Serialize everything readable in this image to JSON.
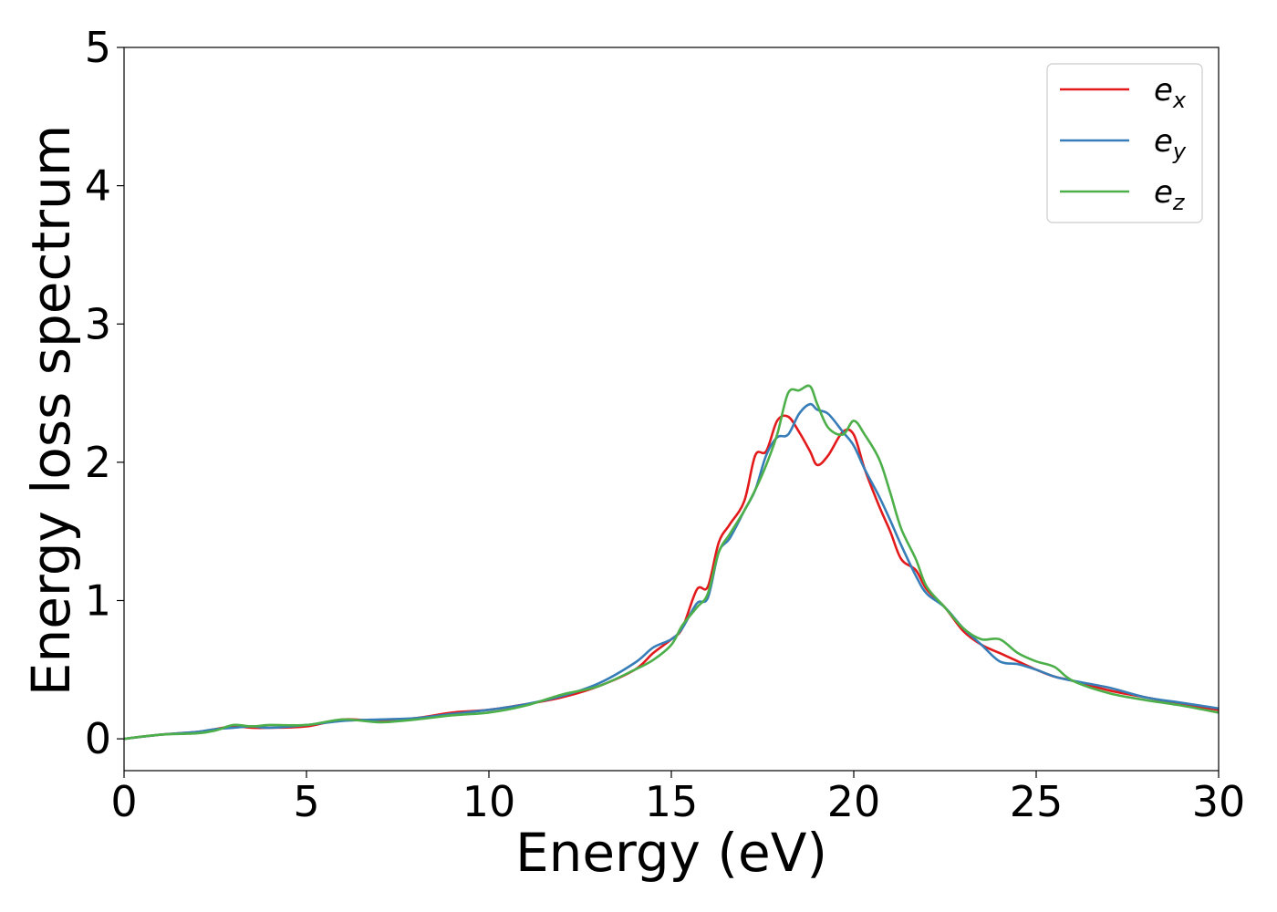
{
  "chart_data": {
    "type": "line",
    "xlabel": "Energy (eV)",
    "ylabel": "Energy loss spectrum",
    "xlim": [
      0,
      30
    ],
    "ylim": [
      -0.23,
      5
    ],
    "xticks": [
      0,
      5,
      10,
      15,
      20,
      25,
      30
    ],
    "yticks": [
      0,
      1,
      2,
      3,
      4,
      5
    ],
    "grid": false,
    "legend_position": "top-right",
    "x": [
      0,
      1,
      2,
      2.5,
      3,
      3.5,
      4,
      5,
      6,
      7,
      8,
      9,
      10,
      11,
      12,
      13,
      14,
      14.5,
      15,
      15.3,
      15.7,
      16,
      16.3,
      16.6,
      17,
      17.3,
      17.6,
      17.9,
      18.2,
      18.5,
      18.8,
      19,
      19.3,
      19.7,
      20,
      20.3,
      20.7,
      21,
      21.3,
      21.7,
      22,
      22.5,
      23,
      23.5,
      24,
      24.5,
      25,
      25.5,
      26,
      27,
      28,
      29,
      30
    ],
    "series": [
      {
        "name": "e_x",
        "label_main": "e",
        "label_sub": "x",
        "color": "#e31a1c",
        "values": [
          0,
          0.03,
          0.05,
          0.07,
          0.09,
          0.08,
          0.08,
          0.09,
          0.14,
          0.13,
          0.15,
          0.19,
          0.21,
          0.25,
          0.3,
          0.38,
          0.5,
          0.62,
          0.72,
          0.8,
          1.08,
          1.1,
          1.42,
          1.55,
          1.72,
          2.05,
          2.08,
          2.3,
          2.33,
          2.22,
          2.08,
          1.98,
          2.05,
          2.22,
          2.2,
          1.95,
          1.68,
          1.5,
          1.3,
          1.22,
          1.08,
          0.95,
          0.78,
          0.68,
          0.62,
          0.56,
          0.5,
          0.45,
          0.42,
          0.35,
          0.3,
          0.25,
          0.21
        ]
      },
      {
        "name": "e_y",
        "label_main": "e",
        "label_sub": "y",
        "color": "#377eb8",
        "values": [
          0,
          0.03,
          0.05,
          0.07,
          0.08,
          0.09,
          0.08,
          0.1,
          0.13,
          0.14,
          0.15,
          0.18,
          0.21,
          0.25,
          0.31,
          0.4,
          0.55,
          0.66,
          0.72,
          0.8,
          0.98,
          1.02,
          1.35,
          1.45,
          1.65,
          1.8,
          2.05,
          2.18,
          2.2,
          2.35,
          2.42,
          2.38,
          2.35,
          2.22,
          2.12,
          1.95,
          1.75,
          1.58,
          1.4,
          1.18,
          1.05,
          0.95,
          0.8,
          0.68,
          0.56,
          0.54,
          0.5,
          0.45,
          0.42,
          0.37,
          0.3,
          0.26,
          0.22
        ]
      },
      {
        "name": "e_z",
        "label_main": "e",
        "label_sub": "z",
        "color": "#4daf4a",
        "values": [
          0,
          0.03,
          0.04,
          0.06,
          0.1,
          0.09,
          0.1,
          0.1,
          0.14,
          0.12,
          0.14,
          0.17,
          0.19,
          0.24,
          0.32,
          0.38,
          0.5,
          0.57,
          0.68,
          0.82,
          0.95,
          1.05,
          1.35,
          1.48,
          1.65,
          1.8,
          1.98,
          2.2,
          2.5,
          2.52,
          2.55,
          2.42,
          2.25,
          2.2,
          2.3,
          2.2,
          2.02,
          1.78,
          1.52,
          1.3,
          1.1,
          0.95,
          0.8,
          0.72,
          0.72,
          0.62,
          0.56,
          0.52,
          0.42,
          0.33,
          0.28,
          0.24,
          0.19
        ]
      }
    ]
  }
}
